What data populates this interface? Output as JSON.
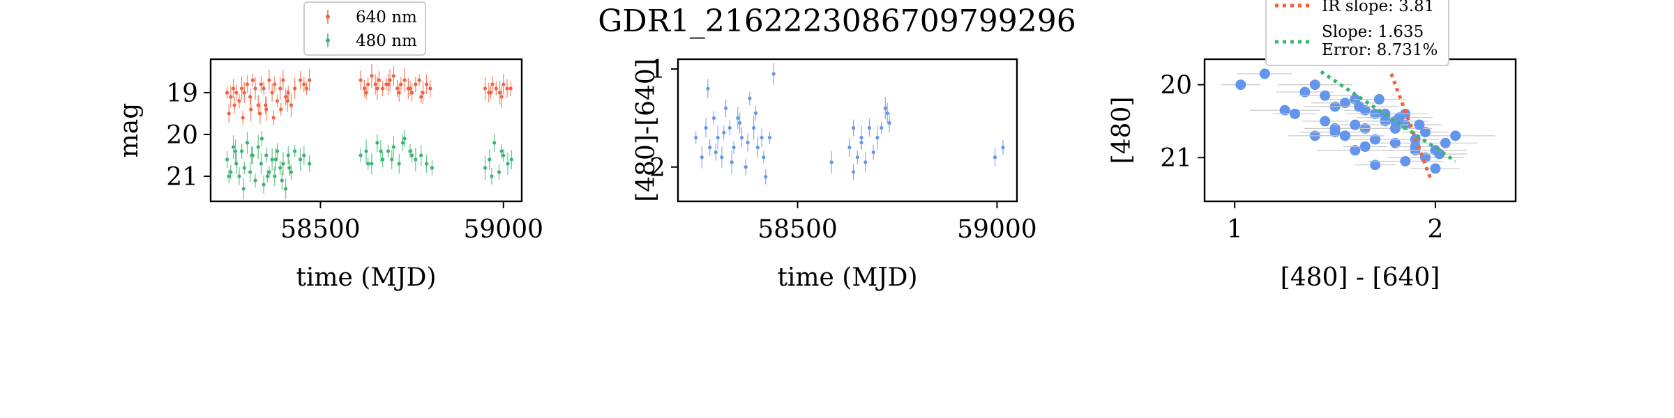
{
  "title": "GDR1_2162223086709799296",
  "chart_data": [
    {
      "type": "scatter",
      "xlabel": "time (MJD)",
      "ylabel": "mag",
      "xlim": [
        58200,
        59050
      ],
      "ylim": [
        21.6,
        18.2
      ],
      "y_inverted": true,
      "xticks": [
        58500,
        59000
      ],
      "yticks": [
        19,
        20,
        21
      ],
      "legend_position": "top-center (outside)",
      "error_bars": true,
      "series": [
        {
          "name": "640 nm",
          "color": "#f4613f",
          "x": [
            58245,
            58255,
            58262,
            58270,
            58278,
            58285,
            58292,
            58300,
            58308,
            58315,
            58322,
            58330,
            58338,
            58345,
            58352,
            58360,
            58368,
            58375,
            58382,
            58390,
            58398,
            58405,
            58412,
            58420,
            58430,
            58445,
            58455,
            58462,
            58470,
            58250,
            58265,
            58288,
            58310,
            58335,
            58350,
            58372,
            58392,
            58410,
            58610,
            58620,
            58630,
            58640,
            58650,
            58660,
            58670,
            58680,
            58690,
            58700,
            58710,
            58720,
            58730,
            58740,
            58750,
            58760,
            58770,
            58780,
            58790,
            58800,
            58625,
            58655,
            58685,
            58715,
            58745,
            58775,
            58950,
            58960,
            58970,
            58980,
            58990,
            59000,
            59010,
            59020,
            58965,
            58995
          ],
          "y": [
            19.0,
            19.1,
            18.9,
            19.0,
            19.2,
            18.9,
            19.0,
            18.8,
            19.1,
            18.7,
            18.9,
            19.3,
            18.8,
            18.9,
            19.4,
            18.7,
            19.0,
            18.8,
            19.2,
            18.9,
            18.7,
            19.1,
            19.0,
            19.3,
            18.9,
            18.7,
            18.8,
            18.9,
            18.7,
            19.5,
            19.3,
            19.6,
            19.4,
            19.5,
            19.3,
            19.6,
            19.4,
            19.2,
            18.7,
            18.9,
            18.8,
            18.6,
            18.8,
            18.7,
            18.9,
            18.8,
            18.7,
            18.6,
            18.9,
            18.8,
            18.7,
            18.9,
            19.0,
            18.8,
            18.7,
            19.0,
            18.8,
            18.9,
            19.0,
            18.9,
            18.8,
            19.0,
            18.9,
            19.1,
            18.9,
            19.0,
            18.8,
            18.9,
            19.0,
            18.8,
            18.9,
            18.9,
            19.0,
            19.1
          ]
        },
        {
          "name": "480 nm",
          "color": "#3cb371",
          "x": [
            58245,
            58255,
            58262,
            58270,
            58278,
            58285,
            58292,
            58300,
            58308,
            58315,
            58322,
            58330,
            58338,
            58345,
            58352,
            58360,
            58368,
            58375,
            58382,
            58390,
            58398,
            58405,
            58412,
            58420,
            58430,
            58445,
            58455,
            58470,
            58250,
            58268,
            58290,
            58312,
            58340,
            58355,
            58378,
            58395,
            58415,
            58610,
            58625,
            58640,
            58655,
            58670,
            58685,
            58700,
            58715,
            58730,
            58745,
            58760,
            58775,
            58790,
            58805,
            58630,
            58665,
            58695,
            58725,
            58750,
            58950,
            58962,
            58975,
            58988,
            59000,
            59012,
            59022,
            58968,
            58995
          ],
          "y": [
            20.6,
            20.9,
            20.3,
            20.7,
            21.0,
            20.4,
            20.8,
            20.2,
            20.9,
            20.5,
            21.1,
            20.3,
            20.7,
            21.2,
            20.5,
            20.9,
            20.6,
            21.0,
            20.4,
            20.8,
            20.7,
            21.3,
            20.5,
            20.9,
            20.4,
            20.6,
            20.5,
            20.7,
            21.0,
            20.4,
            21.3,
            20.5,
            20.1,
            21.0,
            20.6,
            21.1,
            20.8,
            20.5,
            20.4,
            20.7,
            20.2,
            20.6,
            20.4,
            20.3,
            20.7,
            20.1,
            20.4,
            20.6,
            20.5,
            20.7,
            20.8,
            20.7,
            20.4,
            20.6,
            20.2,
            20.5,
            20.8,
            20.6,
            20.2,
            20.9,
            20.5,
            20.7,
            20.6,
            21.0,
            20.4
          ]
        }
      ]
    },
    {
      "type": "scatter",
      "xlabel": "time (MJD)",
      "ylabel": "[480]-[640]",
      "xlim": [
        58200,
        59050
      ],
      "ylim": [
        2.35,
        0.9
      ],
      "y_inverted": true,
      "xticks": [
        58500,
        59000
      ],
      "yticks": [
        1,
        2
      ],
      "error_bars": true,
      "series": [
        {
          "color": "#6495ed",
          "x": [
            58245,
            58260,
            58270,
            58280,
            58290,
            58300,
            58310,
            58320,
            58330,
            58340,
            58350,
            58360,
            58370,
            58380,
            58390,
            58400,
            58410,
            58420,
            58430,
            58440,
            58275,
            58295,
            58315,
            58335,
            58355,
            58375,
            58395,
            58415,
            58585,
            58630,
            58640,
            58650,
            58660,
            58670,
            58680,
            58690,
            58710,
            58720,
            58730,
            58640,
            58660,
            58700,
            58725,
            58995,
            59015
          ],
          "y": [
            1.7,
            1.9,
            1.6,
            1.8,
            1.5,
            1.7,
            1.9,
            1.4,
            1.6,
            1.8,
            1.5,
            1.7,
            2.0,
            1.3,
            1.6,
            1.8,
            1.7,
            2.1,
            1.7,
            1.05,
            1.2,
            1.85,
            1.65,
            1.95,
            1.55,
            1.75,
            1.45,
            1.9,
            1.95,
            1.8,
            1.6,
            1.9,
            1.7,
            1.95,
            1.6,
            1.85,
            1.6,
            1.4,
            1.55,
            2.05,
            1.75,
            1.7,
            1.45,
            1.9,
            1.8
          ]
        }
      ]
    },
    {
      "type": "scatter",
      "xlabel": "[480] - [640]",
      "ylabel": "[480]",
      "xlim": [
        0.85,
        2.4
      ],
      "ylim": [
        21.6,
        19.65
      ],
      "y_inverted": true,
      "xticks": [
        1,
        2
      ],
      "yticks": [
        20,
        21
      ],
      "legend_position": "top-left (above axes)",
      "series": [
        {
          "color": "#6495ed",
          "x": [
            1.03,
            1.15,
            1.25,
            1.3,
            1.35,
            1.4,
            1.45,
            1.5,
            1.55,
            1.6,
            1.65,
            1.7,
            1.75,
            1.8,
            1.85,
            1.9,
            1.95,
            2.0,
            2.05,
            2.1,
            1.45,
            1.55,
            1.65,
            1.75,
            1.85,
            1.95,
            1.5,
            1.6,
            1.7,
            1.8,
            1.9,
            1.4,
            1.5,
            1.6,
            1.7,
            1.8,
            1.9,
            2.0,
            1.62,
            1.72,
            1.82,
            1.92,
            2.02,
            1.55,
            1.65,
            1.75,
            1.85
          ],
          "y": [
            20.0,
            19.85,
            20.35,
            20.4,
            20.1,
            20.0,
            20.5,
            20.3,
            20.7,
            20.2,
            20.6,
            21.1,
            20.5,
            20.8,
            20.4,
            20.9,
            21.0,
            21.15,
            20.8,
            20.7,
            20.15,
            20.25,
            20.35,
            20.45,
            20.55,
            20.65,
            20.6,
            20.9,
            20.75,
            20.5,
            20.85,
            20.7,
            20.65,
            20.55,
            20.4,
            20.6,
            20.75,
            20.9,
            20.3,
            20.2,
            20.45,
            20.55,
            20.95,
            20.7,
            20.85,
            20.4,
            21.05
          ]
        }
      ],
      "fits": [
        {
          "name": "IR slope: 3.81",
          "color": "#f4613f",
          "x": [
            1.78,
            1.98
          ],
          "y": [
            19.85,
            21.32
          ]
        },
        {
          "name": "Slope: 1.635",
          "name_line2": "Error: 8.731%",
          "color": "#3cb371",
          "x": [
            1.43,
            2.1
          ],
          "y": [
            19.82,
            21.05
          ]
        }
      ]
    }
  ]
}
